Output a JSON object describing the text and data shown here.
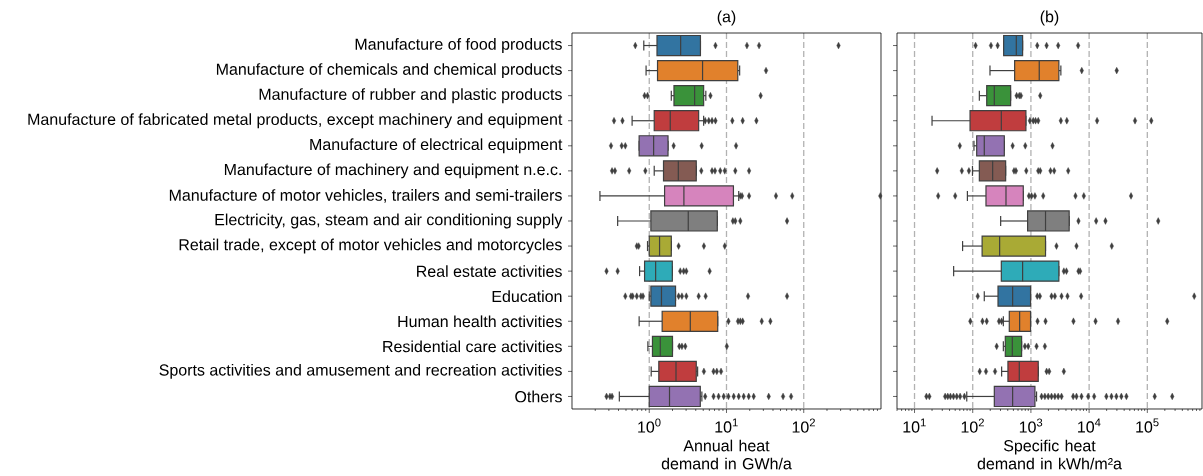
{
  "chart_data": [
    {
      "type": "box",
      "orientation": "horizontal",
      "title": "(a)",
      "xlabel": "Annual heat demand in GWh/a",
      "log": "x",
      "grid": "x",
      "marker": "diamond",
      "xlim": [
        0.1,
        1000
      ],
      "xticks": [
        {
          "value": 1,
          "label": "10$^{0}$"
        },
        {
          "value": 10,
          "label": "10$^{1}$"
        },
        {
          "value": 100,
          "label": "10$^{2}$"
        }
      ],
      "categories": [
        "Manufacture of food products",
        "Manufacture of chemicals and chemical products",
        "Manufacture of rubber and plastic products",
        "Manufacture of fabricated metal products, except machinery and equipment",
        "Manufacture of electrical equipment",
        "Manufacture of machinery and equipment n.e.c.",
        "Manufacture of motor vehicles, trailers and semi-trailers",
        "Electricity, gas, steam and air conditioning supply",
        "Retail trade, except of motor vehicles and motorcycles",
        "Real estate activities",
        "Education",
        "Human health activities",
        "Residential care activities",
        "Sports activities and amusement and recreation activities",
        "Others"
      ],
      "colors": [
        "#3274a1",
        "#e1812c",
        "#3a923a",
        "#c03d3e",
        "#9372b2",
        "#845b53",
        "#d684bd",
        "#7f7f7f",
        "#a9aa35",
        "#2eabb8",
        "#3274a1",
        "#e1812c",
        "#3a923a",
        "#c03d3e",
        "#9372b2"
      ],
      "boxes": [
        {
          "low": 0.85,
          "q1": 1.26,
          "median": 2.55,
          "q3": 4.6,
          "high": 4.6,
          "outliers": [
            0.66,
            7.2,
            18.4,
            26.4,
            282
          ]
        },
        {
          "low": 0.91,
          "q1": 1.28,
          "median": 4.9,
          "q3": 14.0,
          "high": 14.8,
          "outliers": [
            32.5
          ]
        },
        {
          "low": 1.93,
          "q1": 2.09,
          "median": 3.87,
          "q3": 5.06,
          "high": 5.4,
          "outliers": [
            0.87,
            0.95,
            6.2,
            27.7
          ]
        },
        {
          "low": 0.6,
          "q1": 1.16,
          "median": 1.87,
          "q3": 4.36,
          "high": 5.06,
          "outliers": [
            0.35,
            0.45,
            5.3,
            5.9,
            6.5,
            7.2,
            11.9,
            16.2,
            24.4
          ]
        },
        {
          "low": 0.74,
          "q1": 0.74,
          "median": 1.14,
          "q3": 1.75,
          "high": 1.75,
          "outliers": [
            0.32,
            0.44,
            0.49,
            2.07,
            4.77,
            13.3
          ]
        },
        {
          "low": 1.16,
          "q1": 1.53,
          "median": 2.38,
          "q3": 4.06,
          "high": 4.06,
          "outliers": [
            0.33,
            0.36,
            0.55,
            0.89,
            4.72,
            6.5,
            7.1,
            8.3,
            9.5,
            13.0,
            19.6
          ]
        },
        {
          "low": 0.23,
          "q1": 1.58,
          "median": 2.81,
          "q3": 12.3,
          "high": 14.4,
          "outliers": [
            15.1,
            15.9,
            19.6,
            43.7,
            71,
            980
          ]
        },
        {
          "low": 0.39,
          "q1": 1.05,
          "median": 3.2,
          "q3": 7.6,
          "high": 7.6,
          "outliers": [
            12.1,
            13.0,
            15.1,
            60.8
          ]
        },
        {
          "low": 0.95,
          "q1": 1.0,
          "median": 1.36,
          "q3": 1.93,
          "high": 1.93,
          "outliers": [
            0.69,
            0.73,
            2.4,
            5.1,
            9.5
          ]
        },
        {
          "low": 0.75,
          "q1": 0.87,
          "median": 1.21,
          "q3": 1.99,
          "high": 1.99,
          "outliers": [
            0.28,
            0.39,
            2.52,
            2.79,
            3.02,
            6.05
          ]
        },
        {
          "low": 1.0,
          "q1": 1.05,
          "median": 1.44,
          "q3": 2.19,
          "high": 2.19,
          "outliers": [
            0.49,
            0.58,
            0.61,
            0.69,
            0.78,
            0.83,
            2.4,
            2.65,
            3.02,
            4.36,
            5.37,
            19.0,
            60.8
          ]
        },
        {
          "low": 0.74,
          "q1": 1.47,
          "median": 3.4,
          "q3": 7.7,
          "high": 7.7,
          "outliers": [
            10.6,
            14.1,
            15.1,
            16.2,
            28.6,
            37.0
          ]
        },
        {
          "low": 0.96,
          "q1": 1.1,
          "median": 1.39,
          "q3": 2.0,
          "high": 2.0,
          "outliers": [
            2.45,
            2.65,
            2.93,
            10.1
          ]
        },
        {
          "low": 1.06,
          "q1": 1.33,
          "median": 2.22,
          "q3": 4.06,
          "high": 4.23,
          "outliers": [
            5.1,
            6.8,
            7.5,
            8.5
          ]
        },
        {
          "low": 0.41,
          "q1": 1.0,
          "median": 1.83,
          "q3": 4.58,
          "high": 4.8,
          "outliers": [
            0.28,
            0.31,
            0.33,
            5.3,
            6.8,
            7.9,
            9.2,
            10.6,
            12.4,
            14.4,
            16.7,
            19.4,
            22.5,
            35.2,
            54,
            68.6
          ]
        }
      ]
    },
    {
      "type": "box",
      "orientation": "horizontal",
      "title": "(b)",
      "xlabel": "Specific heat demand in kWh/m²a",
      "log": "x",
      "grid": "x",
      "marker": "diamond",
      "tick_labels": "x",
      "xlim": [
        5,
        870000
      ],
      "xticks": [
        {
          "value": 10,
          "label": "10$^{1}$"
        },
        {
          "value": 100,
          "label": "10$^{2}$"
        },
        {
          "value": 1000,
          "label": "10$^{3}$"
        },
        {
          "value": 10000,
          "label": "10$^{4}$"
        },
        {
          "value": 100000,
          "label": "10$^{5}$"
        }
      ],
      "categories": [
        null,
        null,
        null,
        null,
        null,
        null,
        null,
        null,
        null,
        null,
        null,
        null,
        null,
        null,
        null
      ],
      "colors": [
        "#3274a1",
        "#e1812c",
        "#3a923a",
        "#c03d3e",
        "#9372b2",
        "#845b53",
        "#d684bd",
        "#7f7f7f",
        "#a9aa35",
        "#2eabb8",
        "#3274a1",
        "#e1812c",
        "#3a923a",
        "#c03d3e",
        "#9372b2"
      ],
      "boxes": [
        {
          "low": 340,
          "q1": 340,
          "median": 561,
          "q3": 720,
          "high": 720,
          "outliers": [
            112,
            206,
            268,
            1285,
            1860,
            2940,
            6470
          ]
        },
        {
          "low": 198,
          "q1": 525,
          "median": 1390,
          "q3": 3020,
          "high": 3270,
          "outliers": [
            7480,
            29800
          ]
        },
        {
          "low": 130,
          "q1": 174,
          "median": 235,
          "q3": 448,
          "high": 448,
          "outliers": [
            568,
            631,
            674,
            1446
          ]
        },
        {
          "low": 20,
          "q1": 90,
          "median": 310,
          "q3": 820,
          "high": 820,
          "outliers": [
            961,
            1096,
            1202,
            1336,
            3270,
            4140,
            13700,
            61500,
            117000
          ]
        },
        {
          "low": 105,
          "q1": 117,
          "median": 158,
          "q3": 349,
          "high": 349,
          "outliers": [
            60,
            485,
            800,
            2350
          ]
        },
        {
          "low": 99,
          "q1": 130,
          "median": 220,
          "q3": 368,
          "high": 368,
          "outliers": [
            24.5,
            65,
            86,
            512,
            553,
            832,
            1336,
            1446,
            2170,
            2510,
            4370
          ]
        },
        {
          "low": 81,
          "q1": 169,
          "median": 373,
          "q3": 739,
          "high": 739,
          "outliers": [
            25.5,
            50,
            925,
            1026,
            1172,
            1626,
            5830,
            8110,
            52500
          ]
        },
        {
          "low": 302,
          "q1": 877,
          "median": 1782,
          "q3": 4540,
          "high": 4540,
          "outliers": [
            6560,
            13200,
            19100,
            154000
          ]
        },
        {
          "low": 67,
          "q1": 145,
          "median": 290,
          "q3": 1782,
          "high": 1782,
          "outliers": [
            2750,
            6070,
            24500
          ]
        },
        {
          "low": 47,
          "q1": 310,
          "median": 720,
          "q3": 3020,
          "high": 3020,
          "outliers": [
            3680,
            4080,
            6560,
            7010
          ]
        },
        {
          "low": 158,
          "q1": 272,
          "median": 485,
          "q3": 986,
          "high": 986,
          "outliers": [
            122,
            1285,
            1426,
            2260,
            2580,
            3360,
            4250,
            7290,
            640000
          ]
        },
        {
          "low": 336,
          "q1": 425,
          "median": 640,
          "q3": 986,
          "high": 986,
          "outliers": [
            91,
            147,
            174,
            283,
            314,
            1300,
            1782,
            5380,
            12900,
            31400,
            220000
          ]
        },
        {
          "low": 336,
          "q1": 363,
          "median": 479,
          "q3": 692,
          "high": 692,
          "outliers": [
            258,
            789,
            899,
            1250,
            1738
          ]
        },
        {
          "low": 314,
          "q1": 403,
          "median": 631,
          "q3": 1336,
          "high": 1336,
          "outliers": [
            132,
            169,
            242,
            1860,
            2060,
            3680
          ]
        },
        {
          "low": 79,
          "q1": 235,
          "median": 485,
          "q3": 1172,
          "high": 1250,
          "outliers": [
            16,
            18,
            33.6,
            37.3,
            41.4,
            46.7,
            53.2,
            60.7,
            72,
            1524,
            1738,
            1982,
            2260,
            2580,
            2940,
            3360,
            5320,
            6070,
            7400,
            9620,
            12200,
            19800,
            24200,
            29400,
            35800,
            43700,
            134000,
            268000
          ]
        }
      ]
    }
  ]
}
